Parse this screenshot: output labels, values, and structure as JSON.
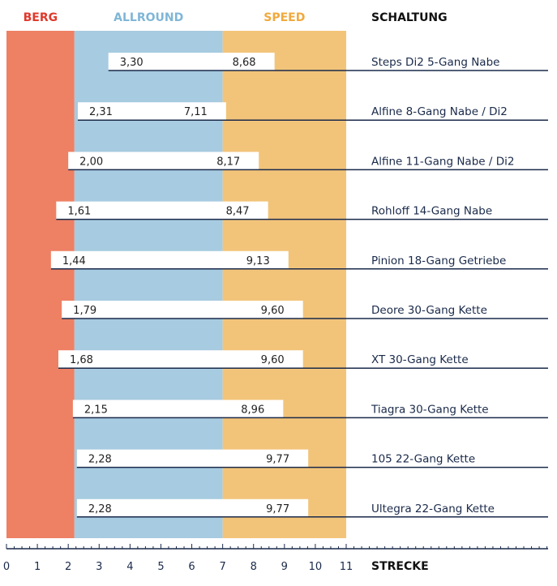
{
  "chart_data": {
    "type": "range-bar",
    "zones": [
      {
        "name": "BERG",
        "from": 0,
        "to": 2.2,
        "color": "#ee8064",
        "label_color": "#e0392b"
      },
      {
        "name": "ALLROUND",
        "from": 2.2,
        "to": 7.0,
        "color": "#a7cbe0",
        "label_color": "#7fb6d6"
      },
      {
        "name": "SPEED",
        "from": 7.0,
        "to": 11.0,
        "color": "#f2c47a",
        "label_color": "#f0a93c"
      }
    ],
    "column_header": "SCHALTUNG",
    "xlabel": "STRECKE",
    "xlim": [
      0,
      11
    ],
    "ticks": [
      "0",
      "1",
      "2",
      "3",
      "4",
      "5",
      "6",
      "7",
      "8",
      "9",
      "10",
      "11"
    ],
    "rows": [
      {
        "name": "Steps Di2 5-Gang Nabe",
        "min": 3.3,
        "max": 8.68,
        "min_label": "3,30",
        "max_label": "8,68"
      },
      {
        "name": "Alfine 8-Gang Nabe / Di2",
        "min": 2.31,
        "max": 7.11,
        "min_label": "2,31",
        "max_label": "7,11"
      },
      {
        "name": "Alfine 11-Gang Nabe / Di2",
        "min": 2.0,
        "max": 8.17,
        "min_label": "2,00",
        "max_label": "8,17"
      },
      {
        "name": "Rohloff 14-Gang Nabe",
        "min": 1.61,
        "max": 8.47,
        "min_label": "1,61",
        "max_label": "8,47"
      },
      {
        "name": "Pinion 18-Gang Getriebe",
        "min": 1.44,
        "max": 9.13,
        "min_label": "1,44",
        "max_label": "9,13"
      },
      {
        "name": "Deore 30-Gang Kette",
        "min": 1.79,
        "max": 9.6,
        "min_label": "1,79",
        "max_label": "9,60"
      },
      {
        "name": "XT 30-Gang Kette",
        "min": 1.68,
        "max": 9.6,
        "min_label": "1,68",
        "max_label": "9,60"
      },
      {
        "name": "Tiagra 30-Gang Kette",
        "min": 2.15,
        "max": 8.96,
        "min_label": "2,15",
        "max_label": "8,96"
      },
      {
        "name": "105 22-Gang Kette",
        "min": 2.28,
        "max": 9.77,
        "min_label": "2,28",
        "max_label": "9,77"
      },
      {
        "name": "Ultegra 22-Gang Kette",
        "min": 2.28,
        "max": 9.77,
        "min_label": "2,28",
        "max_label": "9,77"
      }
    ],
    "line_color": "#1a2a4a"
  }
}
